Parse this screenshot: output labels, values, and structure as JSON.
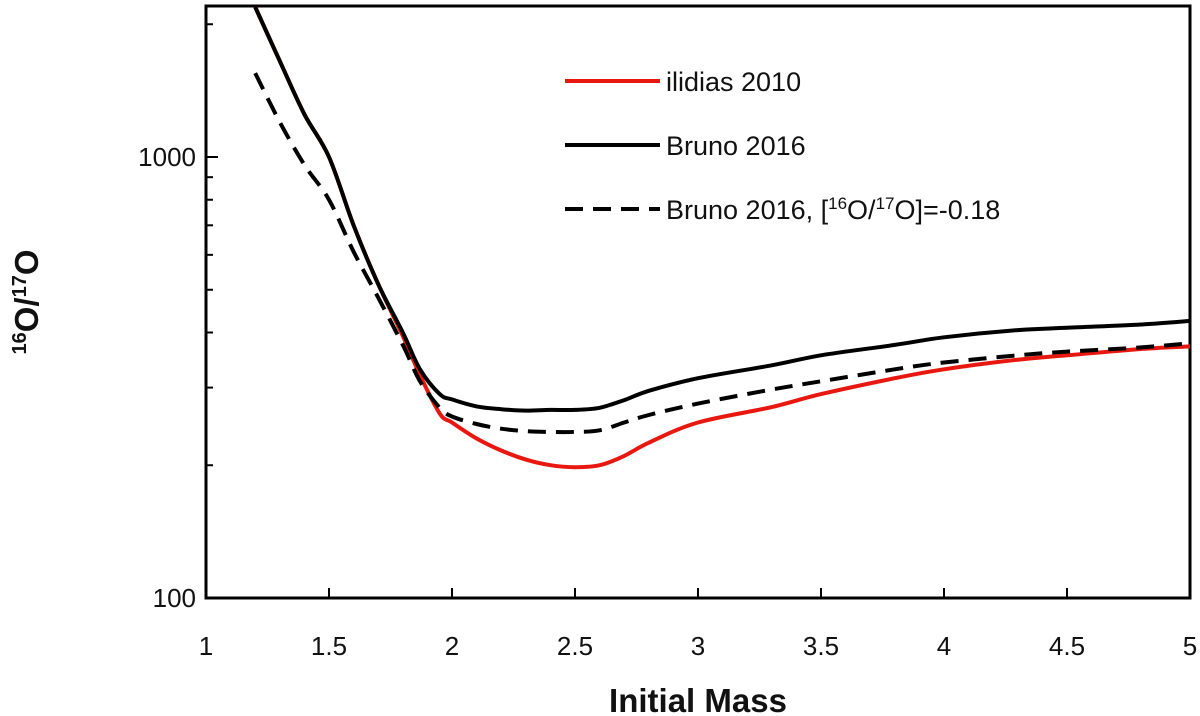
{
  "chart_data": {
    "type": "line",
    "xlabel": "Initial Mass",
    "ylabel": {
      "sup1": "16",
      "mid": "O/",
      "sup2": "17",
      "end": "O"
    },
    "xlim": [
      1,
      5
    ],
    "ylim": [
      100,
      2200
    ],
    "yscale": "log",
    "grid": false,
    "legend_position": "top-right",
    "xticks": [
      {
        "value": 1,
        "label": "1"
      },
      {
        "value": 1.5,
        "label": "1.5"
      },
      {
        "value": 2,
        "label": "2"
      },
      {
        "value": 2.5,
        "label": "2.5"
      },
      {
        "value": 3,
        "label": "3"
      },
      {
        "value": 3.5,
        "label": "3.5"
      },
      {
        "value": 4,
        "label": "4"
      },
      {
        "value": 4.5,
        "label": "4.5"
      },
      {
        "value": 5,
        "label": "5"
      }
    ],
    "yticks": [
      {
        "value": 100,
        "label": "100"
      },
      {
        "value": 1000,
        "label": "1000"
      }
    ],
    "series": [
      {
        "name": "ilidias 2010",
        "color": "#e8170f",
        "dash": "solid",
        "points": [
          [
            1.2,
            2200
          ],
          [
            1.3,
            1650
          ],
          [
            1.4,
            1250
          ],
          [
            1.5,
            1000
          ],
          [
            1.6,
            700
          ],
          [
            1.7,
            515
          ],
          [
            1.8,
            393
          ],
          [
            1.87,
            320
          ],
          [
            1.95,
            262
          ],
          [
            2.0,
            250
          ],
          [
            2.1,
            230
          ],
          [
            2.2,
            216
          ],
          [
            2.3,
            206
          ],
          [
            2.4,
            200
          ],
          [
            2.5,
            198
          ],
          [
            2.6,
            200
          ],
          [
            2.7,
            210
          ],
          [
            2.8,
            225
          ],
          [
            3.0,
            250
          ],
          [
            3.3,
            271
          ],
          [
            3.5,
            290
          ],
          [
            3.8,
            315
          ],
          [
            4.0,
            330
          ],
          [
            4.3,
            347
          ],
          [
            4.5,
            355
          ],
          [
            4.8,
            367
          ],
          [
            5.0,
            372
          ]
        ]
      },
      {
        "name": "Bruno 2016",
        "color": "#000000",
        "dash": "solid",
        "points": [
          [
            1.2,
            2200
          ],
          [
            1.3,
            1650
          ],
          [
            1.4,
            1250
          ],
          [
            1.5,
            1000
          ],
          [
            1.6,
            700
          ],
          [
            1.7,
            515
          ],
          [
            1.8,
            400
          ],
          [
            1.87,
            330
          ],
          [
            1.95,
            290
          ],
          [
            2.0,
            282
          ],
          [
            2.1,
            272
          ],
          [
            2.2,
            268
          ],
          [
            2.3,
            266
          ],
          [
            2.4,
            267
          ],
          [
            2.5,
            267
          ],
          [
            2.6,
            270
          ],
          [
            2.7,
            281
          ],
          [
            2.8,
            295
          ],
          [
            3.0,
            315
          ],
          [
            3.3,
            337
          ],
          [
            3.5,
            355
          ],
          [
            3.8,
            375
          ],
          [
            4.0,
            390
          ],
          [
            4.3,
            405
          ],
          [
            4.5,
            410
          ],
          [
            4.8,
            417
          ],
          [
            5.0,
            425
          ]
        ]
      },
      {
        "name": "Bruno 2016,  [",
        "label_sup1": "16",
        "label_mid": "O/",
        "label_sup2": "17",
        "label_end": "O]=-0.18",
        "color": "#000000",
        "dash": "dashed",
        "points": [
          [
            1.2,
            1550
          ],
          [
            1.3,
            1200
          ],
          [
            1.4,
            960
          ],
          [
            1.5,
            800
          ],
          [
            1.6,
            610
          ],
          [
            1.7,
            480
          ],
          [
            1.8,
            375
          ],
          [
            1.87,
            310
          ],
          [
            1.95,
            270
          ],
          [
            2.0,
            258
          ],
          [
            2.1,
            248
          ],
          [
            2.2,
            242
          ],
          [
            2.3,
            239
          ],
          [
            2.4,
            238
          ],
          [
            2.5,
            238
          ],
          [
            2.6,
            240
          ],
          [
            2.7,
            250
          ],
          [
            2.8,
            260
          ],
          [
            3.0,
            276
          ],
          [
            3.3,
            297
          ],
          [
            3.5,
            310
          ],
          [
            3.8,
            330
          ],
          [
            4.0,
            342
          ],
          [
            4.3,
            355
          ],
          [
            4.5,
            362
          ],
          [
            4.8,
            370
          ],
          [
            5.0,
            378
          ]
        ]
      }
    ]
  }
}
